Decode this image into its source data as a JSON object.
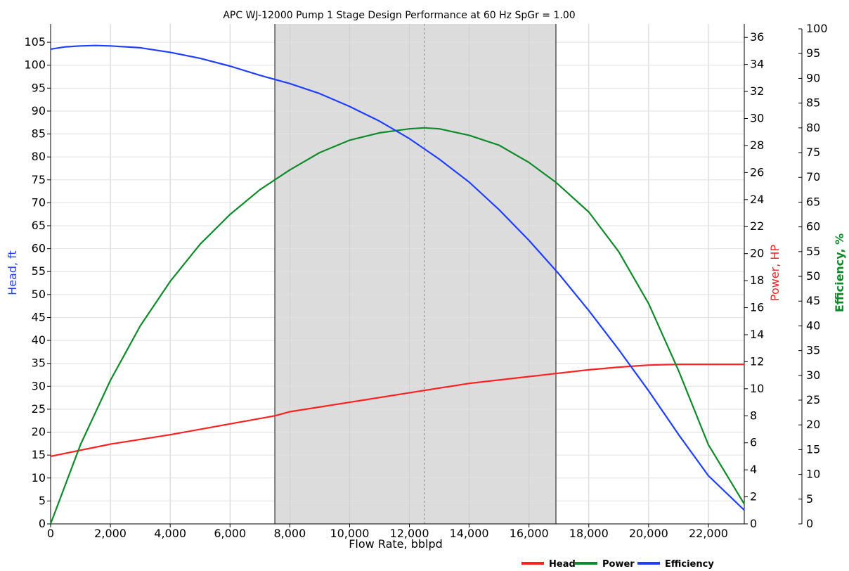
{
  "chart_data": {
    "type": "line",
    "title": "APC WJ-12000 Pump 1 Stage Design Performance at 60 Hz SpGr = 1.00",
    "xlabel": "Flow Rate, bblpd",
    "xlim": [
      0,
      23200
    ],
    "x_ticks": [
      0,
      2000,
      4000,
      6000,
      8000,
      10000,
      12000,
      14000,
      16000,
      18000,
      20000,
      22000
    ],
    "x_tick_labels": [
      "0",
      "2,000",
      "4,000",
      "6,000",
      "8,000",
      "10,000",
      "12,000",
      "14,000",
      "16,000",
      "18,000",
      "20,000",
      "22,000"
    ],
    "grid": true,
    "operating_range": {
      "min": 7500,
      "max": 16900,
      "bep": 12500,
      "fill": "#dcdcdc"
    },
    "axes": [
      {
        "id": "head",
        "label": "Head, ft",
        "side": "left",
        "ylim": [
          0,
          109
        ],
        "step": 5,
        "color": "#1f3fff"
      },
      {
        "id": "power",
        "label": "Power, HP",
        "side": "right",
        "ylim": [
          0,
          37
        ],
        "step": 2,
        "color": "#ff2020"
      },
      {
        "id": "eff",
        "label": "Efficiency, %",
        "side": "right-outer",
        "ylim": [
          0,
          101
        ],
        "step": 5,
        "color": "#0f8a2a"
      }
    ],
    "series": [
      {
        "name": "Head",
        "axis": "power",
        "color": "#ff2020",
        "x": [
          0,
          2000,
          4000,
          6000,
          7500,
          8000,
          10000,
          12000,
          14000,
          16000,
          18000,
          19000,
          20000,
          21000,
          23200
        ],
        "y": [
          5.0,
          5.9,
          6.6,
          7.4,
          8.0,
          8.3,
          9.0,
          9.7,
          10.4,
          10.9,
          11.4,
          11.6,
          11.75,
          11.8,
          11.8
        ]
      },
      {
        "name": "Power",
        "axis": "eff",
        "color": "#0f8a2a",
        "x": [
          0,
          1000,
          2000,
          3000,
          4000,
          5000,
          6000,
          7000,
          7500,
          8000,
          9000,
          10000,
          11000,
          12000,
          12500,
          13000,
          14000,
          15000,
          16000,
          16900,
          18000,
          19000,
          20000,
          21000,
          22000,
          23200
        ],
        "y": [
          0,
          16,
          29,
          40,
          49,
          56.5,
          62.5,
          67.5,
          69.5,
          71.5,
          75,
          77.5,
          79,
          79.8,
          80,
          79.8,
          78.5,
          76.5,
          73,
          69,
          63,
          55,
          44.5,
          31,
          16,
          4
        ]
      },
      {
        "name": "Efficiency",
        "axis": "head",
        "color": "#1f3fff",
        "x": [
          0,
          500,
          1000,
          1500,
          2000,
          3000,
          4000,
          5000,
          6000,
          7000,
          8000,
          9000,
          10000,
          11000,
          12000,
          13000,
          14000,
          15000,
          16000,
          17000,
          18000,
          19000,
          20000,
          21000,
          22000,
          23200
        ],
        "y": [
          103.5,
          104,
          104.2,
          104.3,
          104.2,
          103.8,
          102.8,
          101.5,
          99.8,
          97.8,
          96,
          93.8,
          91,
          87.8,
          84,
          79.5,
          74.5,
          68.5,
          61.8,
          54.5,
          46.5,
          38,
          29,
          19.5,
          10.5,
          3
        ]
      }
    ],
    "legend": {
      "position": "bottom-right",
      "entries": [
        "Head",
        "Power",
        "Efficiency"
      ],
      "colors": [
        "#ff2020",
        "#0f8a2a",
        "#1f3fff"
      ]
    }
  }
}
